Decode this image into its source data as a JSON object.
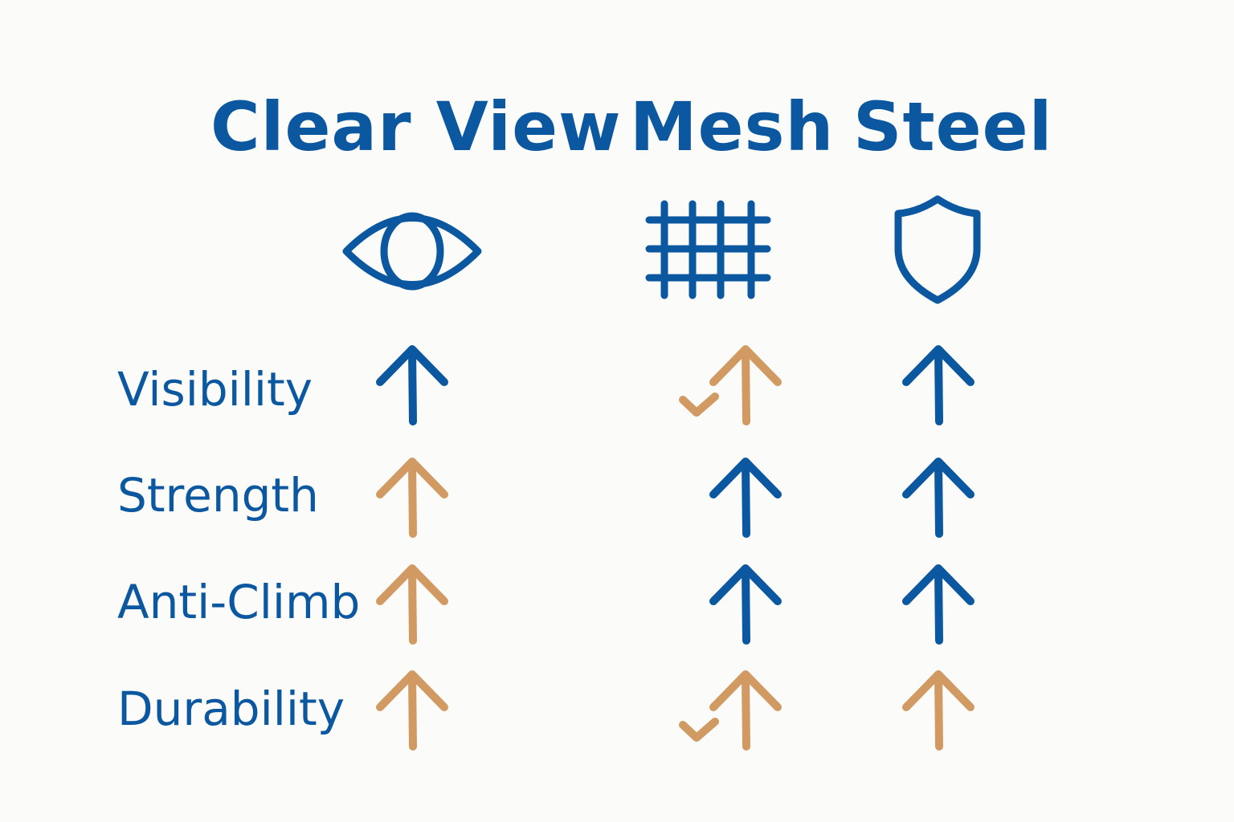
{
  "colors": {
    "good": "#0b57a0",
    "moderate": "#d29a63",
    "background": "#fbfbf9"
  },
  "columns": [
    {
      "title": "Clear View",
      "icon": "eye-icon"
    },
    {
      "title": "Mesh",
      "icon": "grid-icon"
    },
    {
      "title": "Steel",
      "icon": "shield-icon"
    }
  ],
  "rows": [
    {
      "label": "Visibility",
      "cells": [
        {
          "rating": "up",
          "color": "good"
        },
        {
          "rating": "mixed",
          "color": "moderate"
        },
        {
          "rating": "up",
          "color": "good"
        }
      ]
    },
    {
      "label": "Strength",
      "cells": [
        {
          "rating": "up",
          "color": "moderate"
        },
        {
          "rating": "up",
          "color": "good"
        },
        {
          "rating": "up",
          "color": "good"
        }
      ]
    },
    {
      "label": "Anti-Climb",
      "cells": [
        {
          "rating": "up",
          "color": "moderate"
        },
        {
          "rating": "up",
          "color": "good"
        },
        {
          "rating": "up",
          "color": "good"
        }
      ]
    },
    {
      "label": "Durability",
      "cells": [
        {
          "rating": "up",
          "color": "moderate"
        },
        {
          "rating": "mixed",
          "color": "moderate"
        },
        {
          "rating": "up",
          "color": "moderate"
        }
      ]
    }
  ]
}
